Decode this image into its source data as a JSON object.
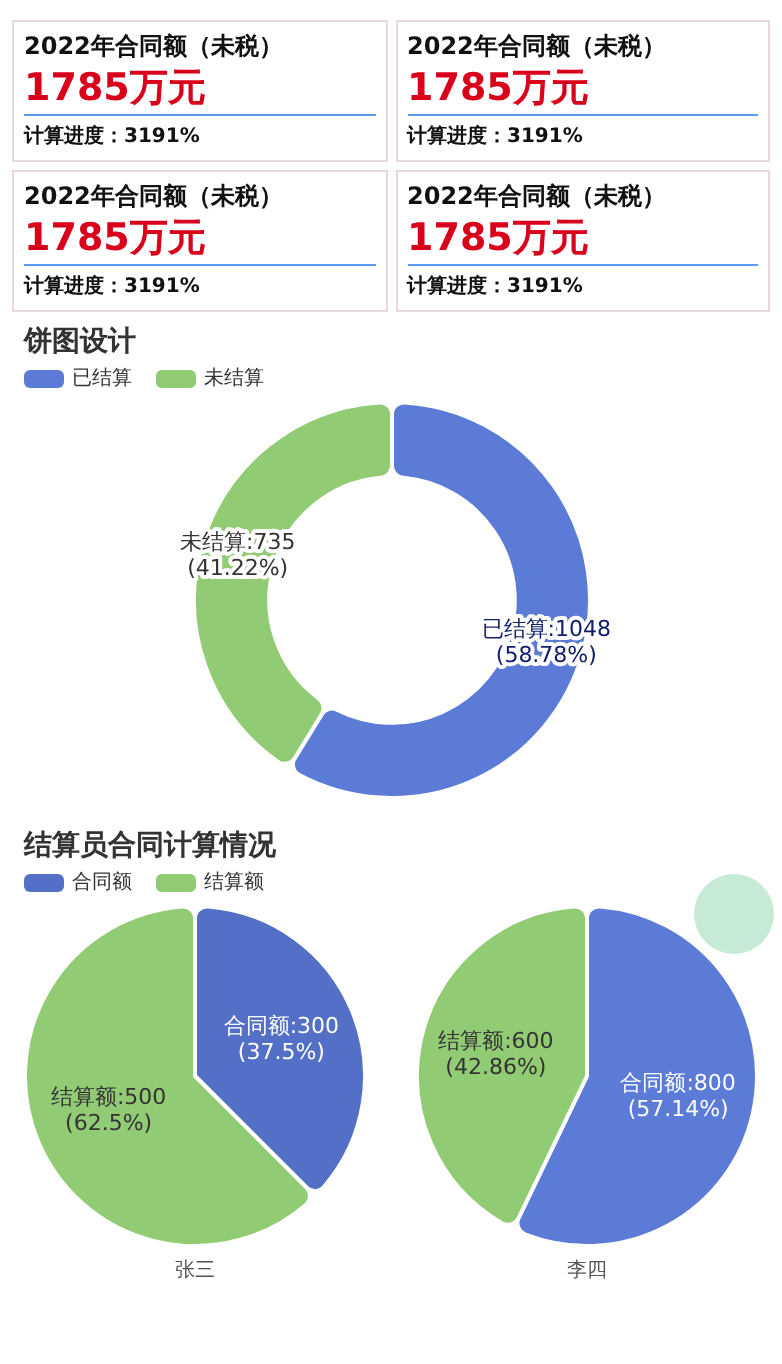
{
  "chart_data": [
    {
      "type": "other",
      "title": "2022年合同额（未税）",
      "annotations": [
        "1785万元",
        "计算进度：3191%"
      ]
    },
    {
      "type": "other",
      "title": "2022年合同额（未税）",
      "annotations": [
        "1785万元",
        "计算进度：3191%"
      ]
    },
    {
      "type": "other",
      "title": "2022年合同额（未税）",
      "annotations": [
        "1785万元",
        "计算进度：3191%"
      ]
    },
    {
      "type": "other",
      "title": "2022年合同额（未税）",
      "annotations": [
        "1785万元",
        "计算进度：3191%"
      ]
    },
    {
      "type": "donut",
      "title": "饼图设计",
      "legend": "top left",
      "categories": [
        "已结算",
        "未结算"
      ],
      "values": [
        1048,
        735
      ],
      "colors": [
        "#5b7bd6",
        "#91cb74"
      ],
      "value_labels": [
        "已结算:1048\n(58.78%)",
        "未结算:735\n(41.22%)"
      ]
    },
    {
      "type": "pie",
      "title": "结算员合同计算情况",
      "legend": "top left",
      "categories": [
        "合同额",
        "结算额"
      ],
      "values": [
        300,
        500
      ],
      "colors": [
        "#5470c6",
        "#91cb74"
      ],
      "value_labels": [
        "合同额:300\n(37.5%)",
        "结算额:500\n(62.5%)"
      ],
      "xlabel": "张三"
    },
    {
      "type": "pie",
      "values": [
        800,
        600
      ],
      "colors": [
        "#5b7bd6",
        "#91cb74"
      ],
      "value_labels": [
        "合同额:800\n(57.14%)",
        "结算额:600\n(42.86%)"
      ],
      "xlabel": "李四"
    }
  ]
}
